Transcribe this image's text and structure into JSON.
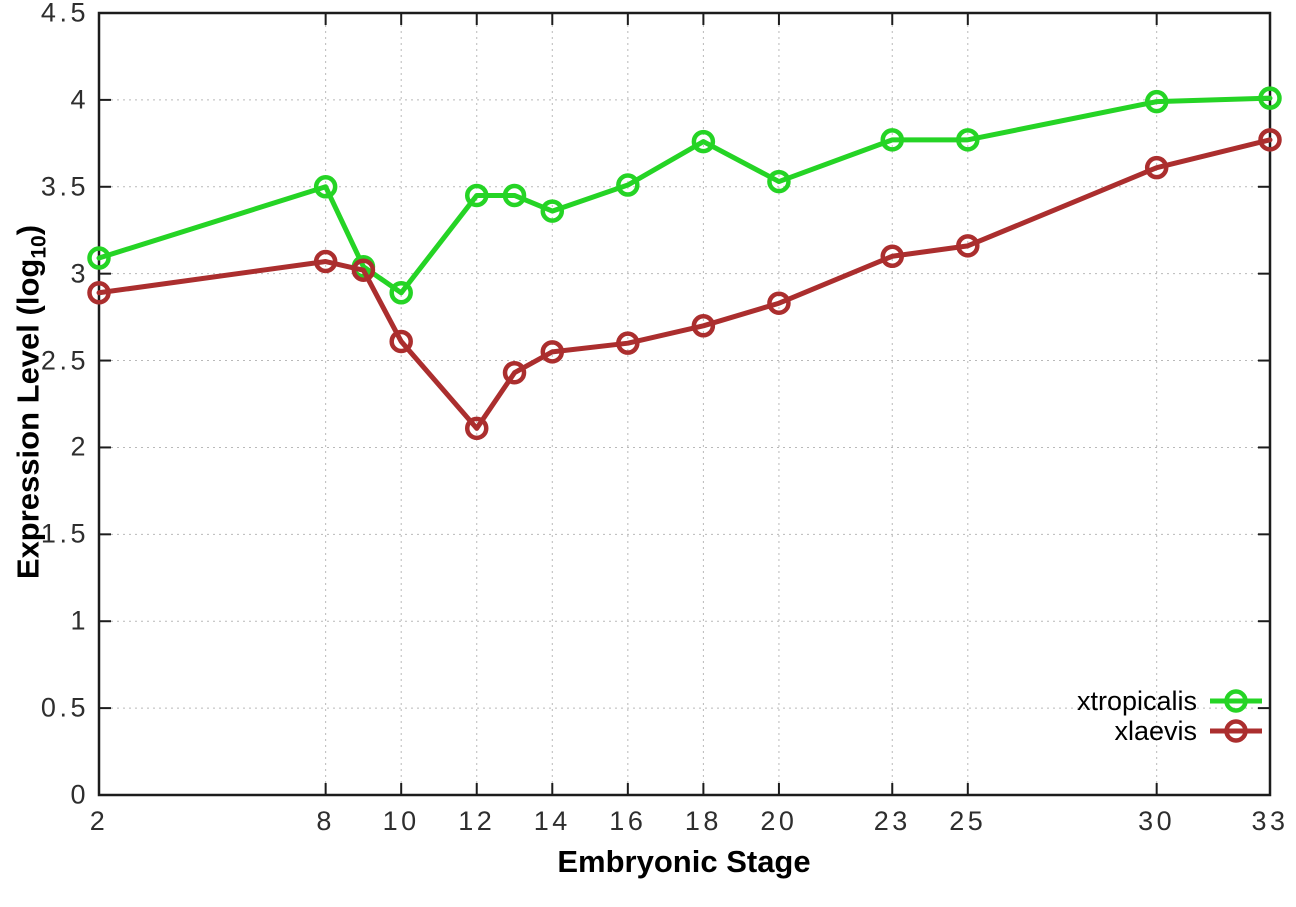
{
  "chart_data": {
    "type": "line",
    "title": "",
    "xlabel": "Embryonic Stage",
    "ylabel_parts": {
      "main": "Expression Level (log",
      "sub": "10",
      "close": ")"
    },
    "xlim": [
      2,
      33
    ],
    "ylim": [
      0,
      4.5
    ],
    "x_ticks": [
      2,
      8,
      10,
      12,
      14,
      16,
      18,
      20,
      23,
      25,
      30,
      33
    ],
    "x_tick_labels": [
      "2",
      "8",
      "10",
      "12",
      "14",
      "16",
      "18",
      "20",
      "23",
      "25",
      "30",
      "33"
    ],
    "y_ticks": [
      0,
      0.5,
      1,
      1.5,
      2,
      2.5,
      3,
      3.5,
      4,
      4.5
    ],
    "y_tick_labels": [
      "0",
      "0.5",
      "1",
      "1.5",
      "2",
      "2.5",
      "3",
      "3.5",
      "4",
      "4.5"
    ],
    "grid": true,
    "legend_position": "bottom-right",
    "x": [
      2,
      8,
      9,
      10,
      12,
      13,
      14,
      16,
      18,
      20,
      23,
      25,
      30,
      33
    ],
    "series": [
      {
        "name": "xtropicalis",
        "color": "#25d425",
        "values": [
          3.09,
          3.5,
          3.04,
          2.89,
          3.45,
          3.45,
          3.36,
          3.51,
          3.76,
          3.53,
          3.77,
          3.77,
          3.99,
          4.01
        ]
      },
      {
        "name": "xlaevis",
        "color": "#ab2e2e",
        "values": [
          2.89,
          3.07,
          3.02,
          2.61,
          2.11,
          2.43,
          2.55,
          2.6,
          2.7,
          2.83,
          3.1,
          3.16,
          3.61,
          3.77
        ]
      }
    ],
    "axis_color": "#1c1c1c",
    "grid_color": "#b9b9b9"
  }
}
